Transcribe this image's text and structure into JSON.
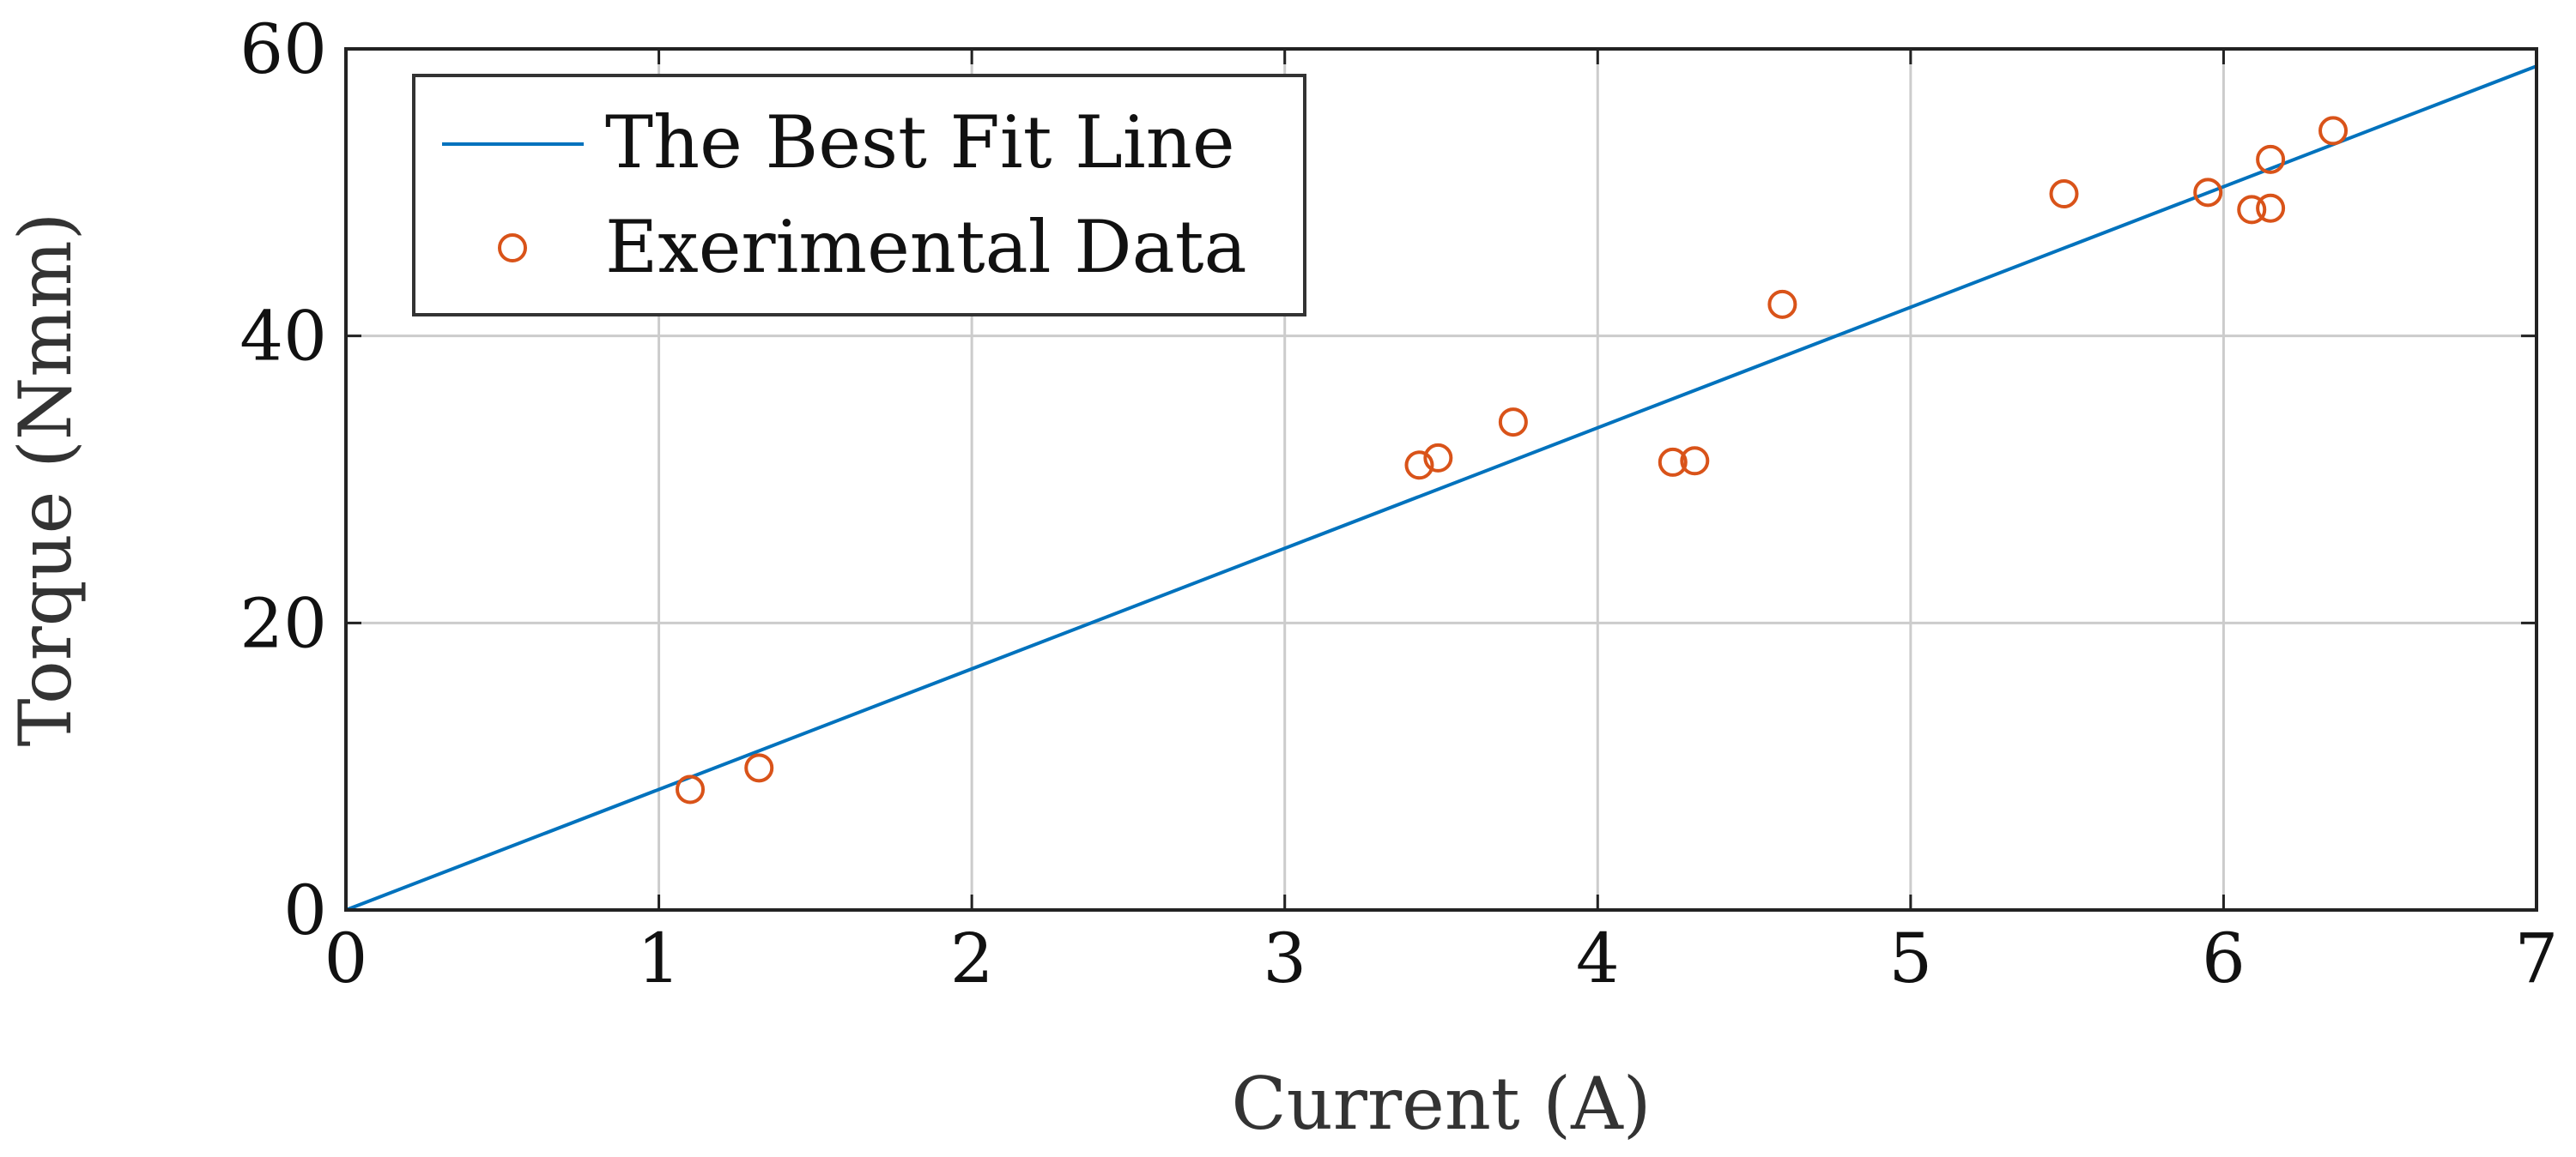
{
  "chart_data": {
    "type": "scatter",
    "title": "",
    "xlabel": "Current (A)",
    "ylabel": "Torque (Nmm)",
    "xlim": [
      0,
      7
    ],
    "ylim": [
      0,
      60
    ],
    "xticks": [
      "0",
      "1",
      "2",
      "3",
      "4",
      "5",
      "6",
      "7"
    ],
    "yticks": [
      "0",
      "20",
      "40",
      "60"
    ],
    "grid": true,
    "legend_position": "top-left",
    "colors": {
      "line": "#0072bd",
      "points": "#d95319",
      "grid": "#cccccc",
      "axes": "#222222"
    },
    "series": [
      {
        "name": "The Best Fit Line",
        "type": "line",
        "x": [
          0,
          7
        ],
        "y": [
          0,
          58.8
        ]
      },
      {
        "name": "Exerimental Data",
        "type": "scatter",
        "marker": "open-circle",
        "x": [
          1.1,
          1.32,
          3.43,
          3.49,
          3.73,
          4.24,
          4.31,
          4.59,
          5.49,
          5.95,
          6.09,
          6.15,
          6.15,
          6.35
        ],
        "y": [
          8.4,
          9.9,
          31.0,
          31.5,
          34.0,
          31.2,
          31.3,
          42.2,
          49.9,
          50.0,
          48.8,
          48.9,
          52.3,
          54.3
        ]
      }
    ]
  }
}
